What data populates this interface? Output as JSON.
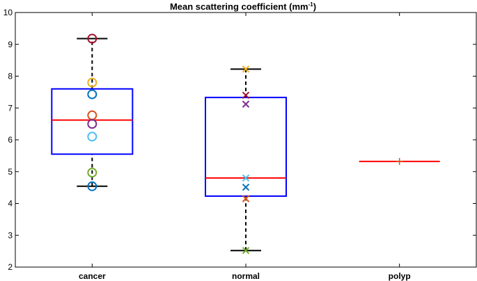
{
  "chart_data": {
    "type": "box",
    "title": "Mean scattering coefficient (mm",
    "title_sup": "-1",
    "title_end": ")",
    "xlabel": "",
    "ylabel": "",
    "ylim": [
      2,
      10
    ],
    "yticks": [
      2,
      3,
      4,
      5,
      6,
      7,
      8,
      9,
      10
    ],
    "categories": [
      "cancer",
      "normal",
      "polyp"
    ],
    "colors": {
      "box": "#0000ff",
      "median": "#ff0000",
      "whisker": "#000000",
      "frame": "#000000"
    },
    "boxes": [
      {
        "category": "cancer",
        "q1": 5.55,
        "median": 6.62,
        "q3": 7.6,
        "whisker_low": 4.54,
        "whisker_high": 9.18,
        "marker": "circle",
        "points": [
          {
            "y": 9.18,
            "color": "#a2142f"
          },
          {
            "y": 7.8,
            "color": "#edb120"
          },
          {
            "y": 7.43,
            "color": "#0072bd"
          },
          {
            "y": 6.77,
            "color": "#d95319"
          },
          {
            "y": 6.5,
            "color": "#7e2f8e"
          },
          {
            "y": 6.1,
            "color": "#4dbeee"
          },
          {
            "y": 4.97,
            "color": "#77ac30"
          },
          {
            "y": 4.54,
            "color": "#0072bd"
          }
        ]
      },
      {
        "category": "normal",
        "q1": 4.23,
        "median": 4.8,
        "q3": 7.33,
        "whisker_low": 2.52,
        "whisker_high": 8.22,
        "marker": "x",
        "points": [
          {
            "y": 8.22,
            "color": "#edb120"
          },
          {
            "y": 7.4,
            "color": "#a2142f"
          },
          {
            "y": 7.12,
            "color": "#7e2f8e"
          },
          {
            "y": 4.8,
            "color": "#4dbeee"
          },
          {
            "y": 4.51,
            "color": "#0072bd"
          },
          {
            "y": 4.15,
            "color": "#d95319"
          },
          {
            "y": 2.52,
            "color": "#77ac30"
          }
        ]
      },
      {
        "category": "polyp",
        "q1": 5.32,
        "median": 5.32,
        "q3": 5.32,
        "whisker_low": 5.32,
        "whisker_high": 5.32,
        "marker": "plus",
        "points": [
          {
            "y": 5.32,
            "color": "#d95319"
          }
        ]
      }
    ]
  }
}
